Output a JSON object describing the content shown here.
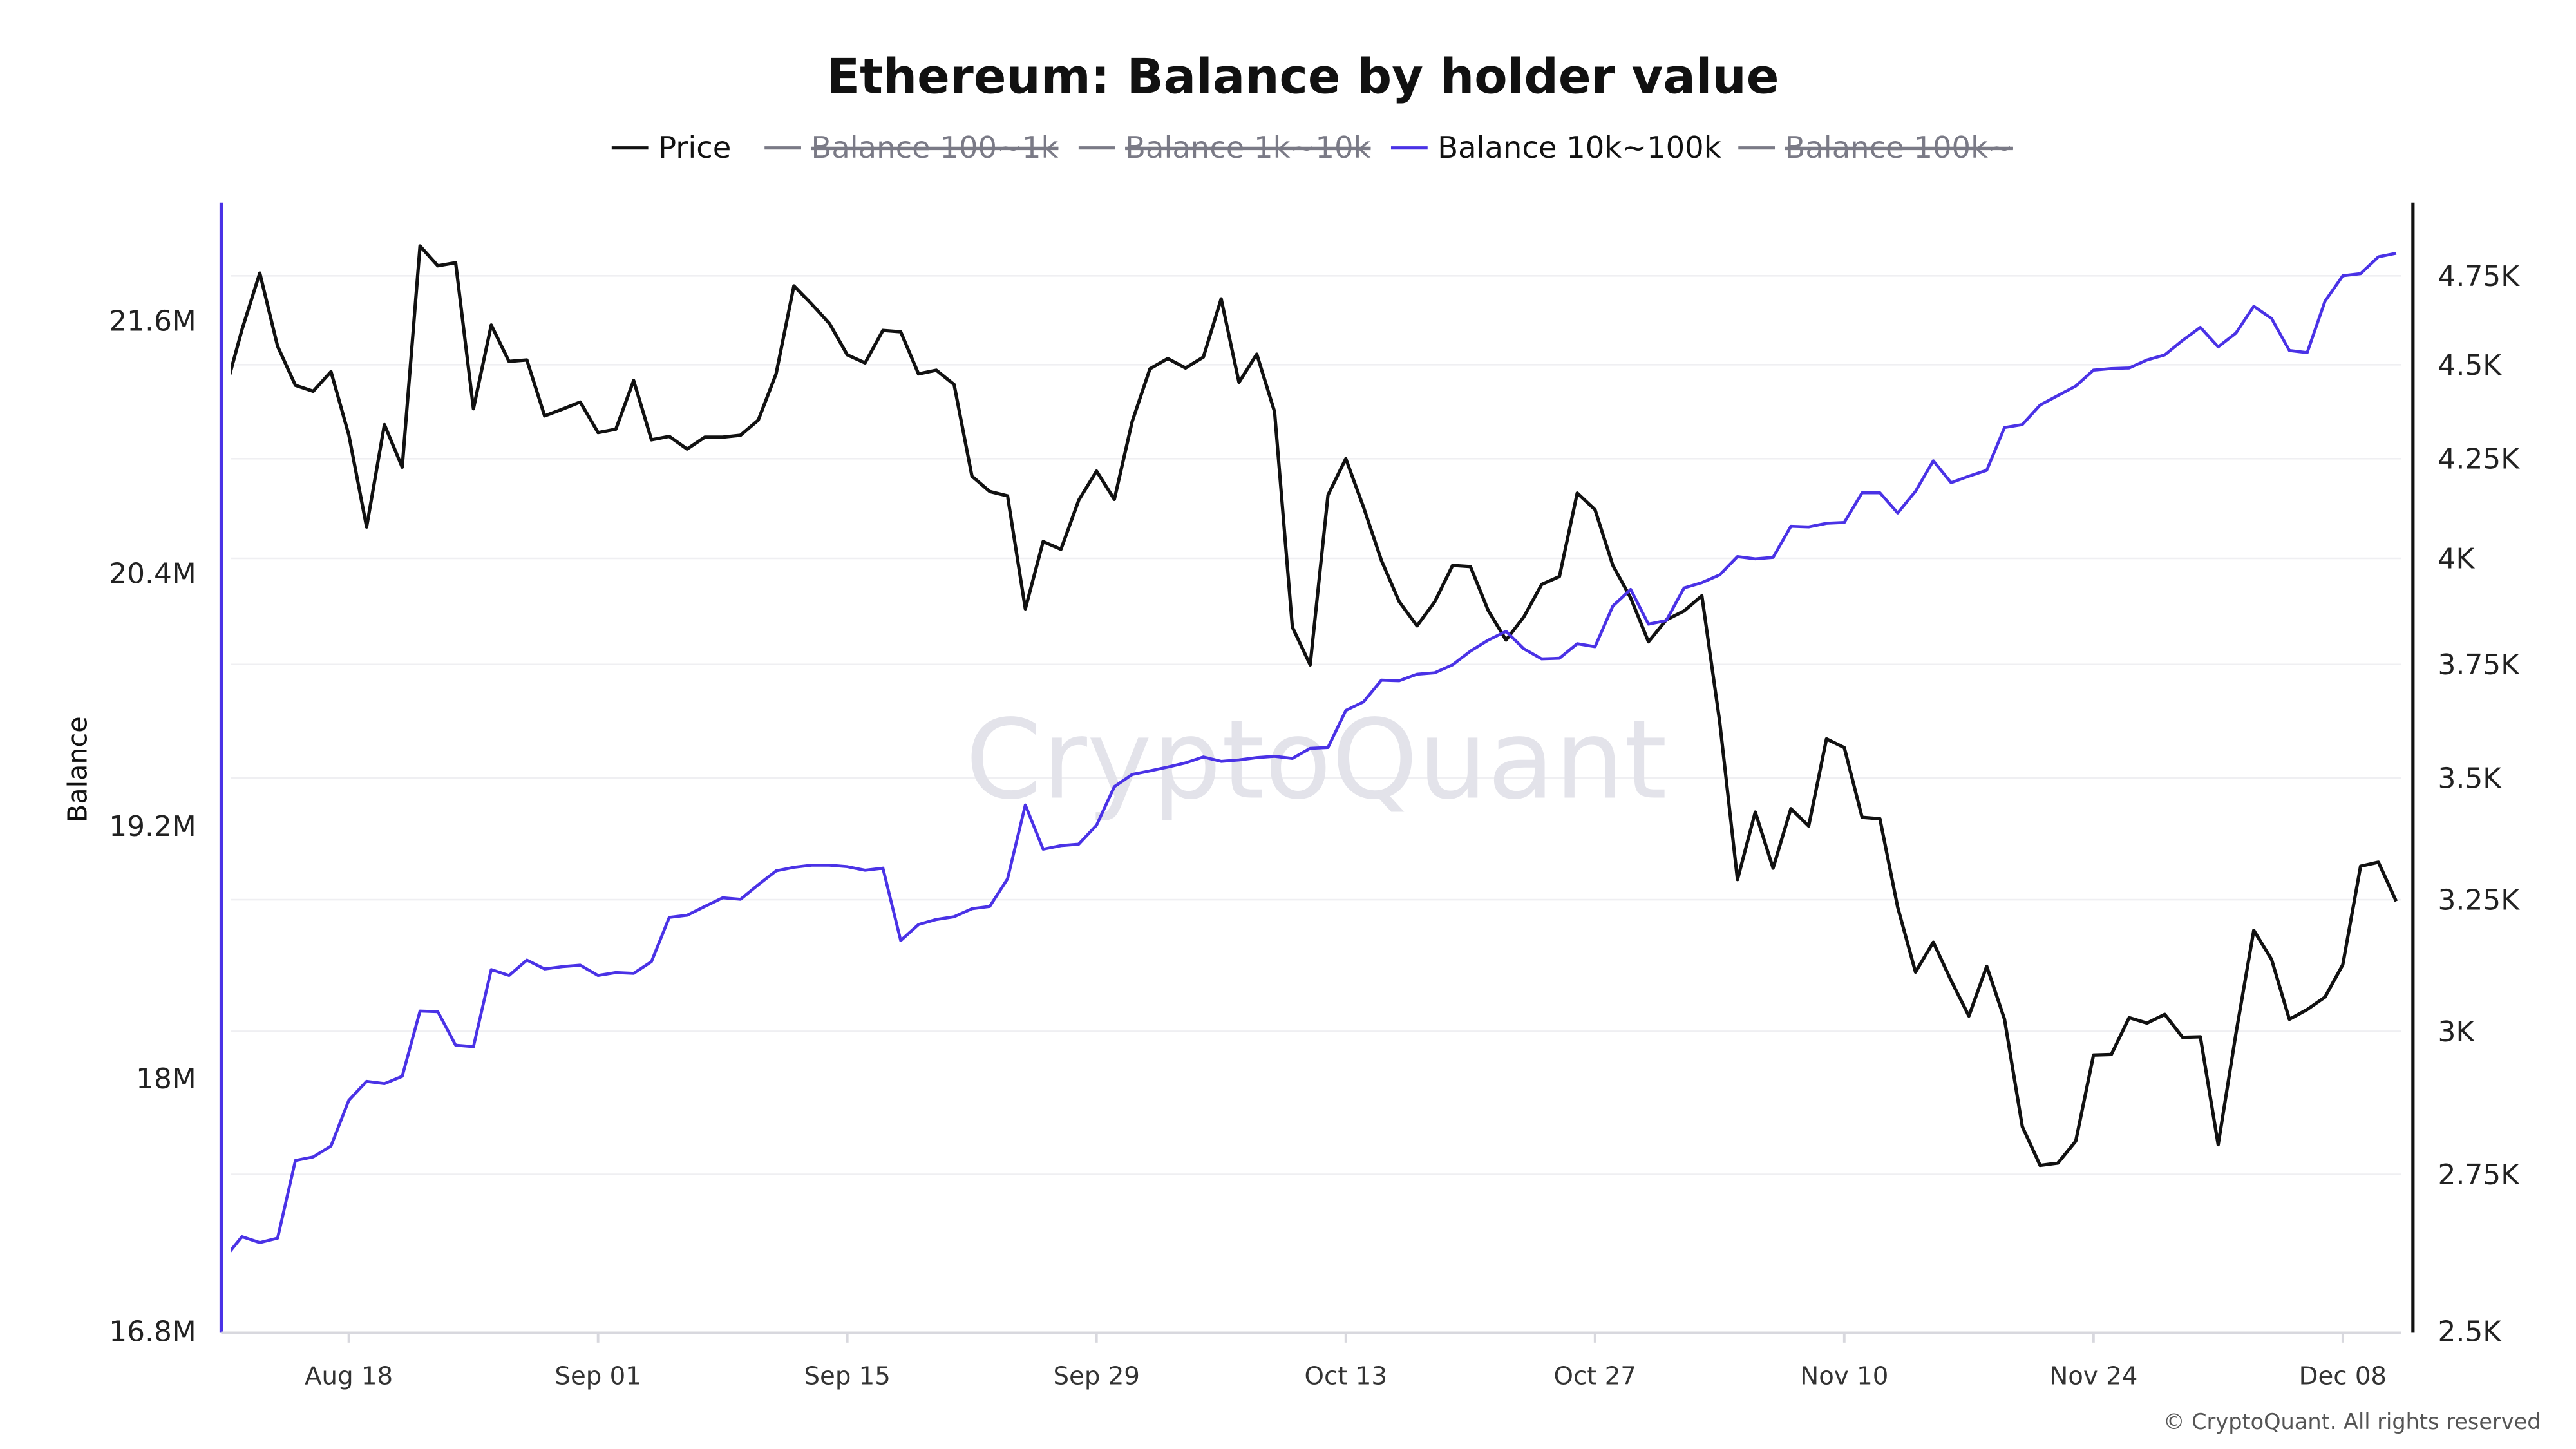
{
  "chart_data": {
    "type": "line",
    "title": "Ethereum: Balance by holder value",
    "legend": [
      {
        "label": "Price",
        "color": "#111111",
        "active": true
      },
      {
        "label": "Balance 100~1k",
        "color": "#7a7a86",
        "active": false
      },
      {
        "label": "Balance 1k~10k",
        "color": "#7a7a86",
        "active": false
      },
      {
        "label": "Balance 10k~100k",
        "color": "#4a32e6",
        "active": true
      },
      {
        "label": "Balance 100k~",
        "color": "#7a7a86",
        "active": false
      }
    ],
    "legend_placement": "top-center",
    "y_left": {
      "label": "Balance",
      "scale": "linear",
      "ylim": [
        16.8,
        22.16
      ],
      "unit": "M",
      "ticks": [
        16.8,
        18,
        19.2,
        20.4,
        21.6
      ],
      "tick_labels": [
        "16.8M",
        "18M",
        "19.2M",
        "20.4M",
        "21.6M"
      ],
      "color": "#4a32e6"
    },
    "y_right": {
      "scale": "log",
      "ylim": [
        2500,
        4966
      ],
      "ticks": [
        2500,
        2750,
        3000,
        3250,
        3500,
        3750,
        4000,
        4250,
        4500,
        4750
      ],
      "tick_labels": [
        "2.5K",
        "2.75K",
        "3K",
        "3.25K",
        "3.5K",
        "3.75K",
        "4K",
        "4.25K",
        "4.5K",
        "4.75K"
      ],
      "color": "#111111"
    },
    "x_ticks": [
      "Aug 18",
      "Sep 01",
      "Sep 15",
      "Sep 29",
      "Oct 13",
      "Oct 27",
      "Nov 10",
      "Nov 24",
      "Dec 08"
    ],
    "grid": "horizontal",
    "x": [
      "Aug 11",
      "Aug 12",
      "Aug 13",
      "Aug 14",
      "Aug 15",
      "Aug 16",
      "Aug 17",
      "Aug 18",
      "Aug 19",
      "Aug 20",
      "Aug 21",
      "Aug 22",
      "Aug 23",
      "Aug 24",
      "Aug 25",
      "Aug 26",
      "Aug 27",
      "Aug 28",
      "Aug 29",
      "Aug 30",
      "Aug 31",
      "Sep 01",
      "Sep 02",
      "Sep 03",
      "Sep 04",
      "Sep 05",
      "Sep 06",
      "Sep 07",
      "Sep 08",
      "Sep 09",
      "Sep 10",
      "Sep 11",
      "Sep 12",
      "Sep 13",
      "Sep 14",
      "Sep 15",
      "Sep 16",
      "Sep 17",
      "Sep 18",
      "Sep 19",
      "Sep 20",
      "Sep 21",
      "Sep 22",
      "Sep 23",
      "Sep 24",
      "Sep 25",
      "Sep 26",
      "Sep 27",
      "Sep 28",
      "Sep 29",
      "Sep 30",
      "Oct 01",
      "Oct 02",
      "Oct 03",
      "Oct 04",
      "Oct 05",
      "Oct 06",
      "Oct 07",
      "Oct 08",
      "Oct 09",
      "Oct 10",
      "Oct 11",
      "Oct 12",
      "Oct 13",
      "Oct 14",
      "Oct 15",
      "Oct 16",
      "Oct 17",
      "Oct 18",
      "Oct 19",
      "Oct 20",
      "Oct 21",
      "Oct 22",
      "Oct 23",
      "Oct 24",
      "Oct 25",
      "Oct 26",
      "Oct 27",
      "Oct 28",
      "Oct 29",
      "Oct 30",
      "Oct 31",
      "Nov 01",
      "Nov 02",
      "Nov 03",
      "Nov 04",
      "Nov 05",
      "Nov 06",
      "Nov 07",
      "Nov 08",
      "Nov 09",
      "Nov 10",
      "Nov 11",
      "Nov 12",
      "Nov 13",
      "Nov 14",
      "Nov 15",
      "Nov 16",
      "Nov 17",
      "Nov 18",
      "Nov 19",
      "Nov 20",
      "Nov 21",
      "Nov 22",
      "Nov 23",
      "Nov 24",
      "Nov 25",
      "Nov 26",
      "Nov 27",
      "Nov 28",
      "Nov 29",
      "Nov 30",
      "Dec 01",
      "Dec 02",
      "Dec 03",
      "Dec 04",
      "Dec 05",
      "Dec 06",
      "Dec 07",
      "Dec 08",
      "Dec 09",
      "Dec 10",
      "Dec 11"
    ],
    "series": [
      {
        "name": "Price",
        "axis": "right",
        "color": "#111111",
        "values": [
          4418,
          4597,
          4758,
          4551,
          4444,
          4428,
          4481,
          4312,
          4077,
          4339,
          4228,
          4837,
          4779,
          4788,
          4381,
          4610,
          4509,
          4513,
          4362,
          4380,
          4399,
          4318,
          4327,
          4457,
          4299,
          4308,
          4275,
          4306,
          4306,
          4311,
          4351,
          4475,
          4721,
          4669,
          4614,
          4527,
          4505,
          4595,
          4591,
          4475,
          4485,
          4446,
          4205,
          4166,
          4155,
          3879,
          4041,
          4022,
          4144,
          4218,
          4146,
          4347,
          4489,
          4517,
          4491,
          4521,
          4684,
          4452,
          4529,
          4373,
          3836,
          3749,
          4157,
          4250,
          4126,
          3995,
          3896,
          3839,
          3896,
          3983,
          3980,
          3875,
          3806,
          3860,
          3937,
          3956,
          4162,
          4120,
          3983,
          3905,
          3802,
          3853,
          3874,
          3910,
          3622,
          3290,
          3428,
          3313,
          3435,
          3399,
          3584,
          3565,
          3417,
          3414,
          3235,
          3110,
          3167,
          3094,
          3028,
          3121,
          3022,
          2831,
          2765,
          2769,
          2806,
          2957,
          2958,
          3025,
          3015,
          3031,
          2989,
          2990,
          2800,
          2996,
          3190,
          3134,
          3022,
          3040,
          3063,
          3124,
          3317,
          3325,
          3247
        ]
      },
      {
        "name": "Balance 10k~100k",
        "axis": "left",
        "unit": "M",
        "color": "#4a32e6",
        "values": [
          17.144,
          17.248,
          17.22,
          17.241,
          17.61,
          17.627,
          17.679,
          17.896,
          17.986,
          17.975,
          18.01,
          18.32,
          18.317,
          18.158,
          18.151,
          18.517,
          18.489,
          18.562,
          18.52,
          18.531,
          18.538,
          18.489,
          18.503,
          18.499,
          18.555,
          18.765,
          18.775,
          18.817,
          18.858,
          18.851,
          18.92,
          18.986,
          19.003,
          19.013,
          19.013,
          19.006,
          18.989,
          18.999,
          18.655,
          18.731,
          18.755,
          18.768,
          18.806,
          18.817,
          18.948,
          19.299,
          19.089,
          19.106,
          19.113,
          19.203,
          19.386,
          19.444,
          19.461,
          19.479,
          19.499,
          19.527,
          19.506,
          19.513,
          19.524,
          19.53,
          19.52,
          19.568,
          19.572,
          19.748,
          19.789,
          19.892,
          19.889,
          19.92,
          19.927,
          19.965,
          20.03,
          20.082,
          20.124,
          20.041,
          19.993,
          19.996,
          20.065,
          20.051,
          20.244,
          20.323,
          20.158,
          20.175,
          20.33,
          20.355,
          20.392,
          20.479,
          20.468,
          20.475,
          20.623,
          20.62,
          20.637,
          20.641,
          20.782,
          20.782,
          20.686,
          20.789,
          20.934,
          20.83,
          20.861,
          20.889,
          21.092,
          21.106,
          21.199,
          21.244,
          21.289,
          21.365,
          21.372,
          21.375,
          21.413,
          21.437,
          21.506,
          21.568,
          21.475,
          21.541,
          21.668,
          21.61,
          21.458,
          21.448,
          21.692,
          21.813,
          21.823,
          21.903,
          21.92
        ]
      }
    ]
  },
  "watermark": "CryptoQuant",
  "copyright": "© CryptoQuant. All rights reserved"
}
